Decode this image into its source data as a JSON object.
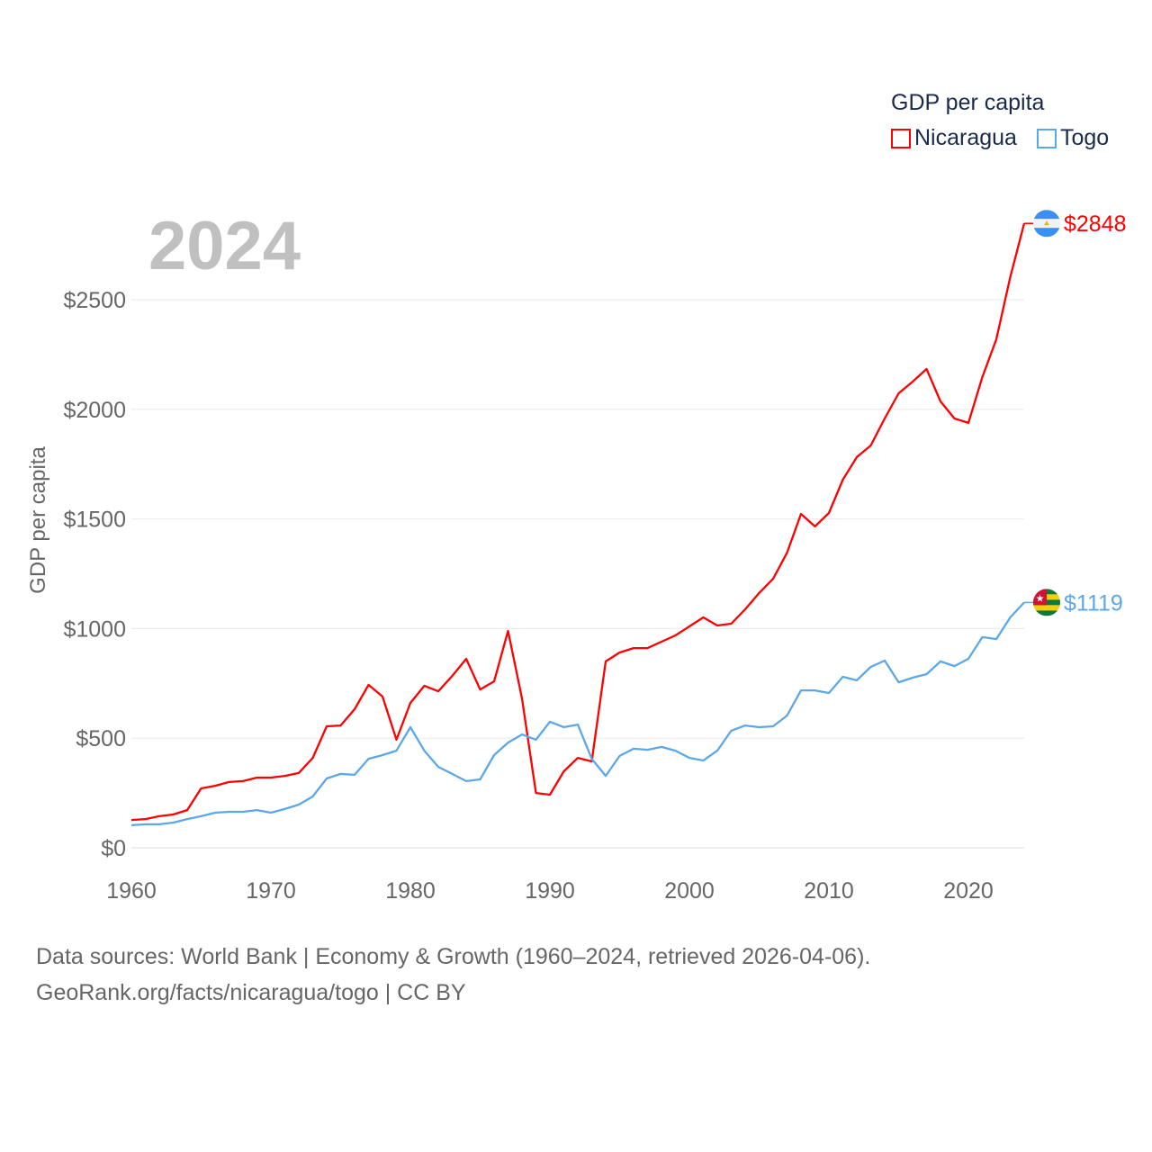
{
  "chart_data": {
    "type": "line",
    "title": "",
    "legend_title": "GDP per capita",
    "legend_position": "top-right",
    "ylabel": "GDP per capita",
    "xlabel": "",
    "year_watermark": "2024",
    "ylim": [
      0,
      2900
    ],
    "xlim": [
      1960,
      2024
    ],
    "yticks": [
      0,
      500,
      1000,
      1500,
      2000,
      2500
    ],
    "ytick_labels": [
      "$0",
      "$500",
      "$1000",
      "$1500",
      "$2000",
      "$2500"
    ],
    "xticks": [
      1960,
      1970,
      1980,
      1990,
      2000,
      2010,
      2020
    ],
    "xtick_labels": [
      "1960",
      "1970",
      "1980",
      "1990",
      "2000",
      "2010",
      "2020"
    ],
    "grid": true,
    "x_start": 1960,
    "series": [
      {
        "name": "Nicaragua",
        "color": "#ff0000",
        "end_label": "$2848",
        "flag": "nicaragua-flag",
        "values": [
          127,
          131,
          144,
          152,
          172,
          271,
          283,
          300,
          304,
          320,
          320,
          328,
          341,
          410,
          554,
          558,
          632,
          743,
          690,
          493,
          661,
          739,
          714,
          784,
          862,
          722,
          759,
          989,
          681,
          250,
          242,
          349,
          410,
          394,
          850,
          891,
          911,
          911,
          940,
          969,
          1010,
          1051,
          1014,
          1022,
          1088,
          1162,
          1227,
          1346,
          1523,
          1466,
          1527,
          1679,
          1782,
          1835,
          1958,
          2073,
          2126,
          2184,
          2036,
          1958,
          1938,
          2147,
          2319,
          2603,
          2848
        ]
      },
      {
        "name": "Togo",
        "color": "#5ba8e8",
        "end_label": "$1119",
        "flag": "togo-flag",
        "values": [
          103,
          107,
          107,
          115,
          131,
          144,
          160,
          164,
          164,
          172,
          160,
          177,
          197,
          234,
          316,
          337,
          333,
          406,
          423,
          443,
          550,
          443,
          369,
          337,
          304,
          312,
          423,
          480,
          517,
          493,
          575,
          550,
          562,
          406,
          328,
          419,
          452,
          447,
          460,
          443,
          410,
          398,
          443,
          534,
          558,
          550,
          554,
          603,
          718,
          718,
          706,
          780,
          764,
          825,
          854,
          755,
          776,
          792,
          850,
          829,
          862,
          961,
          952,
          1051,
          1119
        ]
      }
    ]
  },
  "footer": {
    "line1": "Data sources: World Bank | Economy & Growth (1960–2024, retrieved 2026-04-06).",
    "line2": "GeoRank.org/facts/nicaragua/togo | CC BY"
  }
}
